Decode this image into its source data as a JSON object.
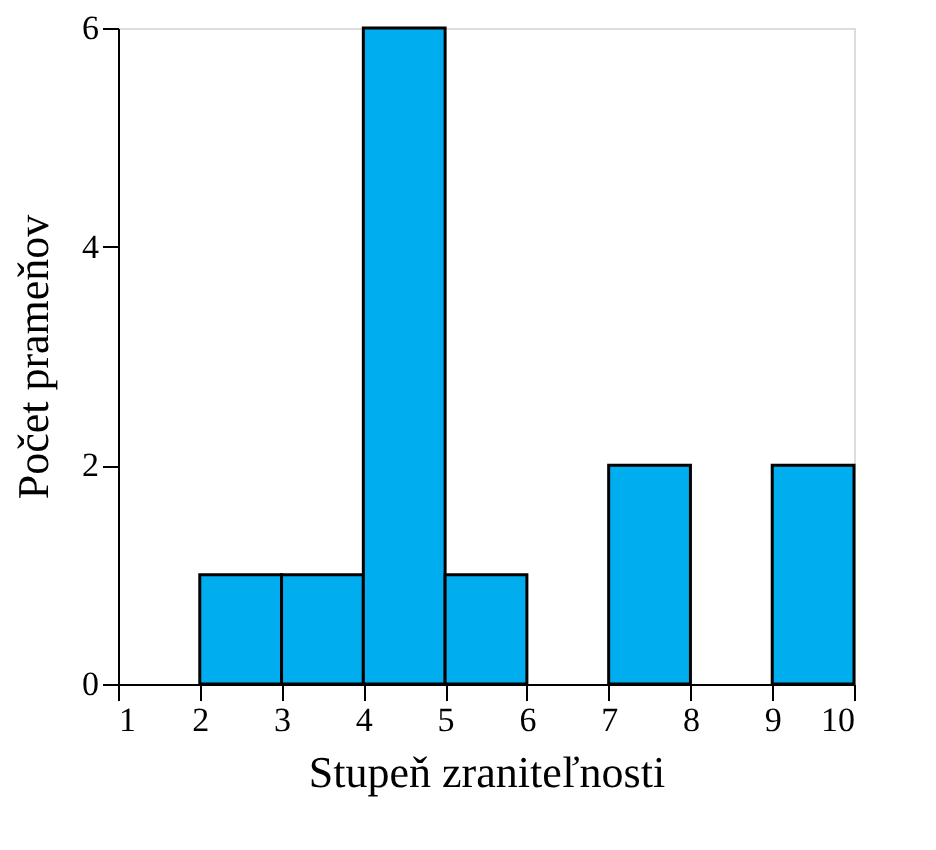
{
  "chart_data": {
    "type": "histogram",
    "xlabel": "Stupeň zraniteľnosti",
    "ylabel": "Počet prameňov",
    "bins": [
      1,
      2,
      3,
      4,
      5,
      6,
      7,
      8,
      9,
      10
    ],
    "values": [
      0,
      1,
      1,
      6,
      1,
      0,
      2,
      0,
      2
    ],
    "color": "#00aeef",
    "xlim": [
      1,
      10
    ],
    "xticks": [
      1,
      2,
      3,
      4,
      5,
      6,
      7,
      8,
      9,
      10
    ],
    "ylim": [
      0,
      6
    ],
    "yticks": [
      0,
      2,
      4,
      6
    ],
    "grid": false
  }
}
